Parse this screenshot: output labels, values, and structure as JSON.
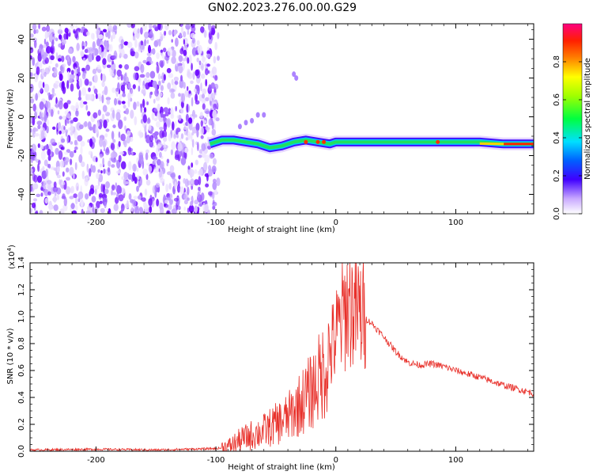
{
  "title": "GN02.2023.276.00.00.G29",
  "chart_data": [
    {
      "type": "heatmap",
      "xlabel": "Height of straight line (km)",
      "ylabel": "Frequency (Hz)",
      "xlim": [
        -255,
        165
      ],
      "ylim": [
        -50,
        48
      ],
      "x_ticks": [
        -200,
        -100,
        0,
        100
      ],
      "y_ticks": [
        -40,
        -20,
        0,
        20,
        40
      ],
      "noise_region_x": [
        -255,
        -98
      ],
      "signal_ridge": {
        "x": [
          -105,
          -95,
          -85,
          -75,
          -65,
          -55,
          -45,
          -35,
          -25,
          -15,
          -5,
          0,
          20,
          40,
          60,
          80,
          100,
          120,
          140,
          165
        ],
        "frequency": [
          -14,
          -12,
          -12,
          -13,
          -14,
          -16,
          -15,
          -13,
          -12,
          -13,
          -14,
          -13,
          -13,
          -13,
          -13,
          -13,
          -13,
          -13,
          -14,
          -14
        ]
      },
      "colorbar": {
        "label": "Normalized spectral amplitude",
        "range": [
          0.0,
          1.0
        ],
        "ticks": [
          0.0,
          0.2,
          0.4,
          0.6,
          0.8
        ],
        "tick_labels": [
          "0.0",
          "0.2",
          "0.4",
          "0.6",
          "0.8"
        ]
      }
    },
    {
      "type": "line",
      "xlabel": "Height of straight line (km)",
      "ylabel": "SNR (10 * v/v)",
      "y_multiplier_label": "(x10",
      "y_multiplier_exp": "4",
      "xlim": [
        -255,
        165
      ],
      "ylim": [
        0.0,
        1.4
      ],
      "x_ticks": [
        -200,
        -100,
        0,
        100
      ],
      "y_ticks": [
        0.0,
        0.2,
        0.4,
        0.6,
        0.8,
        1.0,
        1.2,
        1.4
      ],
      "y_tick_labels": [
        "0.0",
        "0.2",
        "0.4",
        "0.6",
        "0.8",
        "1.0",
        "1.2",
        "1.4"
      ],
      "color": "#e8302a",
      "series": [
        {
          "x": [
            -255,
            -200,
            -150,
            -100,
            -90,
            -80,
            -70,
            -60,
            -50,
            -40,
            -30,
            -20,
            -10,
            0,
            10,
            20,
            30,
            40,
            50,
            60,
            70,
            80,
            90,
            100,
            120,
            140,
            165
          ],
          "y": [
            0.01,
            0.015,
            0.01,
            0.02,
            0.03,
            0.08,
            0.12,
            0.15,
            0.2,
            0.25,
            0.35,
            0.45,
            0.6,
            0.85,
            1.1,
            1.02,
            0.95,
            0.85,
            0.74,
            0.66,
            0.64,
            0.65,
            0.63,
            0.6,
            0.55,
            0.49,
            0.43
          ]
        }
      ]
    }
  ]
}
